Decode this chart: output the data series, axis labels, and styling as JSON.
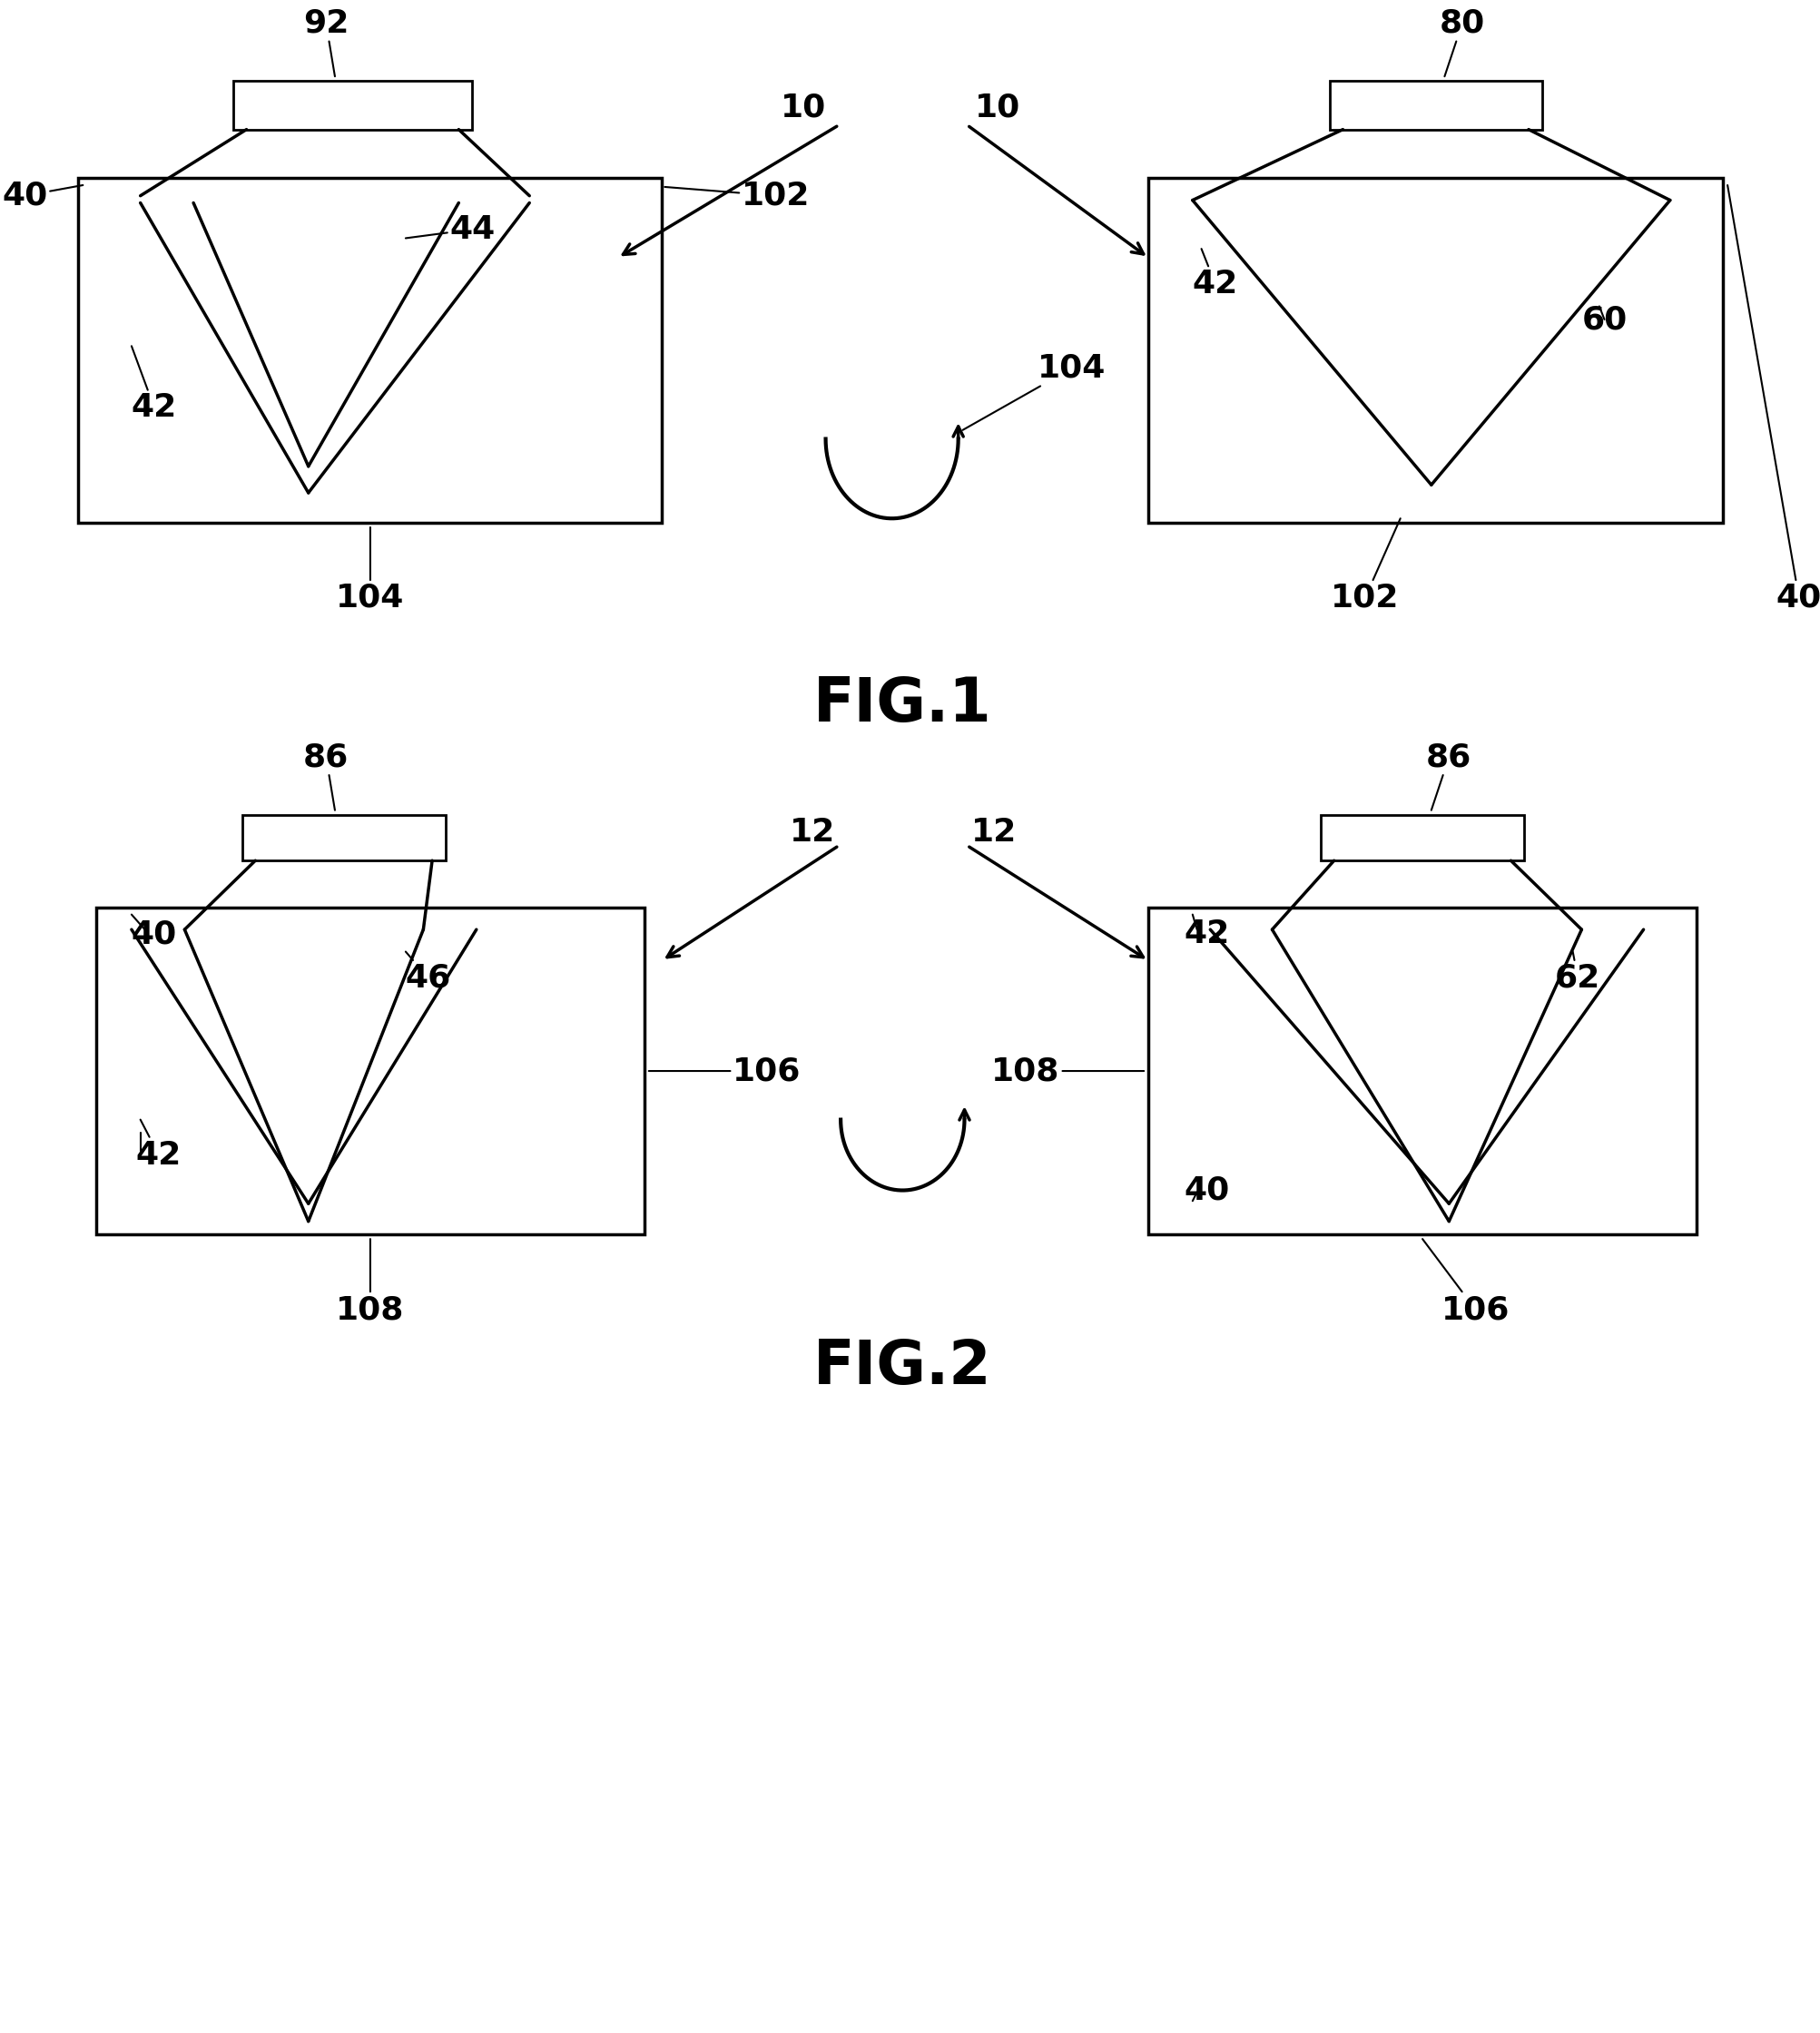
{
  "bg_color": "#ffffff",
  "line_color": "#000000",
  "fig_width": 20.05,
  "fig_height": 22.4,
  "fig1_label": "FIG.1",
  "fig2_label": "FIG.2",
  "font_size_label": 48,
  "font_size_ref": 26,
  "line_width": 2.5,
  "thick_fill": 14,
  "thin_fill": 6
}
